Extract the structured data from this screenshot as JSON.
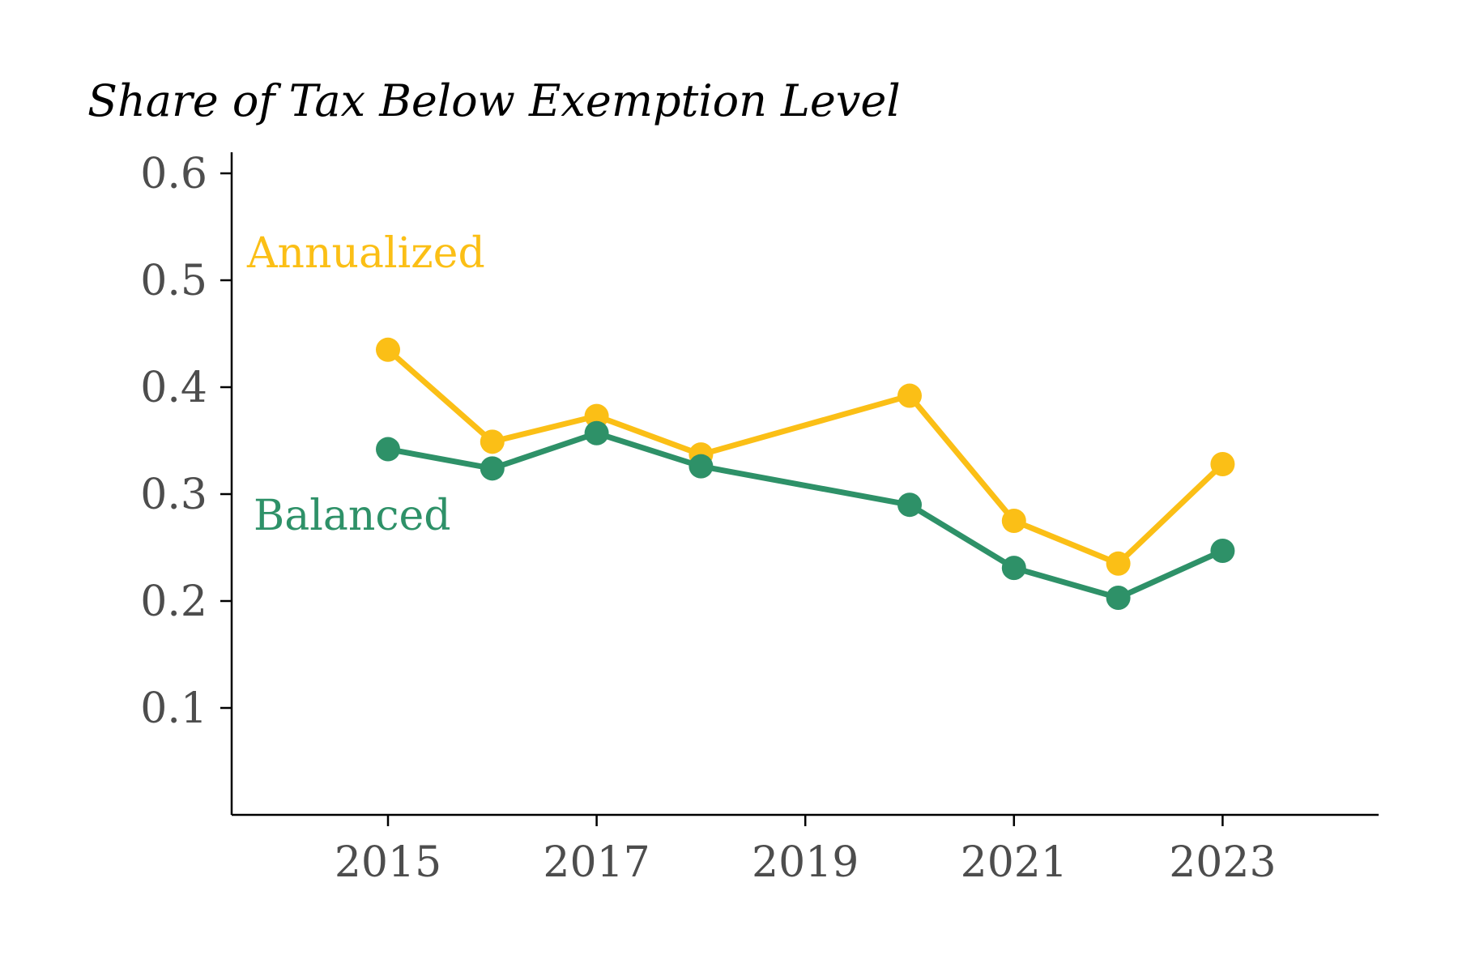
{
  "chart_data": {
    "type": "line",
    "title": "Share of Tax Below Exemption Level",
    "xlabel": "",
    "ylabel": "",
    "x": [
      2015,
      2016,
      2017,
      2018,
      2020,
      2021,
      2022,
      2023
    ],
    "xlim": [
      2013.5,
      2024.5
    ],
    "ylim": [
      0.0,
      0.62
    ],
    "x_ticks": [
      "2015",
      "2017",
      "2019",
      "2021",
      "2023"
    ],
    "y_ticks": [
      "0.1",
      "0.2",
      "0.3",
      "0.4",
      "0.5",
      "0.6"
    ],
    "grid": false,
    "legend": "direct labels",
    "series": [
      {
        "name": "Annualized",
        "color": "#FBBF16",
        "values": [
          0.435,
          0.349,
          0.373,
          0.337,
          0.392,
          0.275,
          0.235,
          0.328
        ]
      },
      {
        "name": "Balanced",
        "color": "#2E9168",
        "values": [
          0.342,
          0.324,
          0.357,
          0.326,
          0.29,
          0.231,
          0.203,
          0.247
        ]
      }
    ]
  }
}
